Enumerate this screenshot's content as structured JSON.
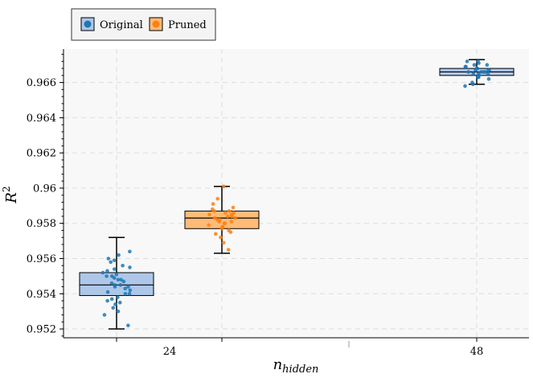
{
  "chart_data": {
    "type": "box",
    "xlabel_base": "n",
    "xlabel_sub": "hidden",
    "ylabel_base": "R",
    "ylabel_sup": "2",
    "ylim": [
      0.9515,
      0.9679
    ],
    "y_ticks": [
      0.952,
      0.954,
      0.956,
      0.958,
      0.96,
      0.962,
      0.964,
      0.966
    ],
    "y_tick_labels": [
      "0.952",
      "0.954",
      "0.956",
      "0.958",
      "0.96",
      "0.962",
      "0.964",
      "0.966"
    ],
    "x_tick_labels": [
      "24",
      "48"
    ],
    "grid": true,
    "legend_position": "top-left, above plot",
    "legend": [
      {
        "label": "Original",
        "color": "#1f77b4",
        "box_color": "#aec7e8"
      },
      {
        "label": "Pruned",
        "color": "#ff7f0e",
        "box_color": "#ffbb78"
      }
    ],
    "boxes": [
      {
        "group": "24",
        "series": "Original",
        "whisker_low": 0.952,
        "q1": 0.9539,
        "median": 0.9545,
        "q3": 0.9552,
        "whisker_high": 0.9572,
        "points": [
          0.9522,
          0.9528,
          0.953,
          0.9532,
          0.9534,
          0.9535,
          0.9536,
          0.9537,
          0.9538,
          0.954,
          0.954,
          0.9541,
          0.9542,
          0.9543,
          0.9544,
          0.9544,
          0.9545,
          0.9545,
          0.9546,
          0.9547,
          0.9548,
          0.9548,
          0.9549,
          0.955,
          0.955,
          0.9551,
          0.9552,
          0.9553,
          0.9554,
          0.9555,
          0.9556,
          0.9558,
          0.9559,
          0.956,
          0.9562,
          0.9564
        ]
      },
      {
        "group": "24",
        "series": "Pruned",
        "whisker_low": 0.9563,
        "q1": 0.9577,
        "median": 0.9583,
        "q3": 0.9587,
        "whisker_high": 0.9601,
        "points": [
          0.9565,
          0.9569,
          0.9572,
          0.9574,
          0.9575,
          0.9576,
          0.9577,
          0.9578,
          0.9578,
          0.9579,
          0.958,
          0.958,
          0.9581,
          0.9581,
          0.9582,
          0.9582,
          0.9583,
          0.9583,
          0.9584,
          0.9584,
          0.9585,
          0.9585,
          0.9586,
          0.9586,
          0.9587,
          0.9587,
          0.9588,
          0.9589,
          0.9591,
          0.9594,
          0.9601
        ]
      },
      {
        "group": "48",
        "series": "Original",
        "whisker_low": 0.9659,
        "q1": 0.9664,
        "median": 0.9666,
        "q3": 0.9668,
        "whisker_high": 0.9673,
        "points": [
          0.9658,
          0.9659,
          0.966,
          0.9662,
          0.9663,
          0.9663,
          0.9664,
          0.9664,
          0.9665,
          0.9665,
          0.9665,
          0.9666,
          0.9666,
          0.9666,
          0.9666,
          0.9667,
          0.9667,
          0.9667,
          0.9668,
          0.9668,
          0.9668,
          0.9669,
          0.9669,
          0.967,
          0.967,
          0.9671,
          0.9672,
          0.9672
        ]
      }
    ]
  }
}
